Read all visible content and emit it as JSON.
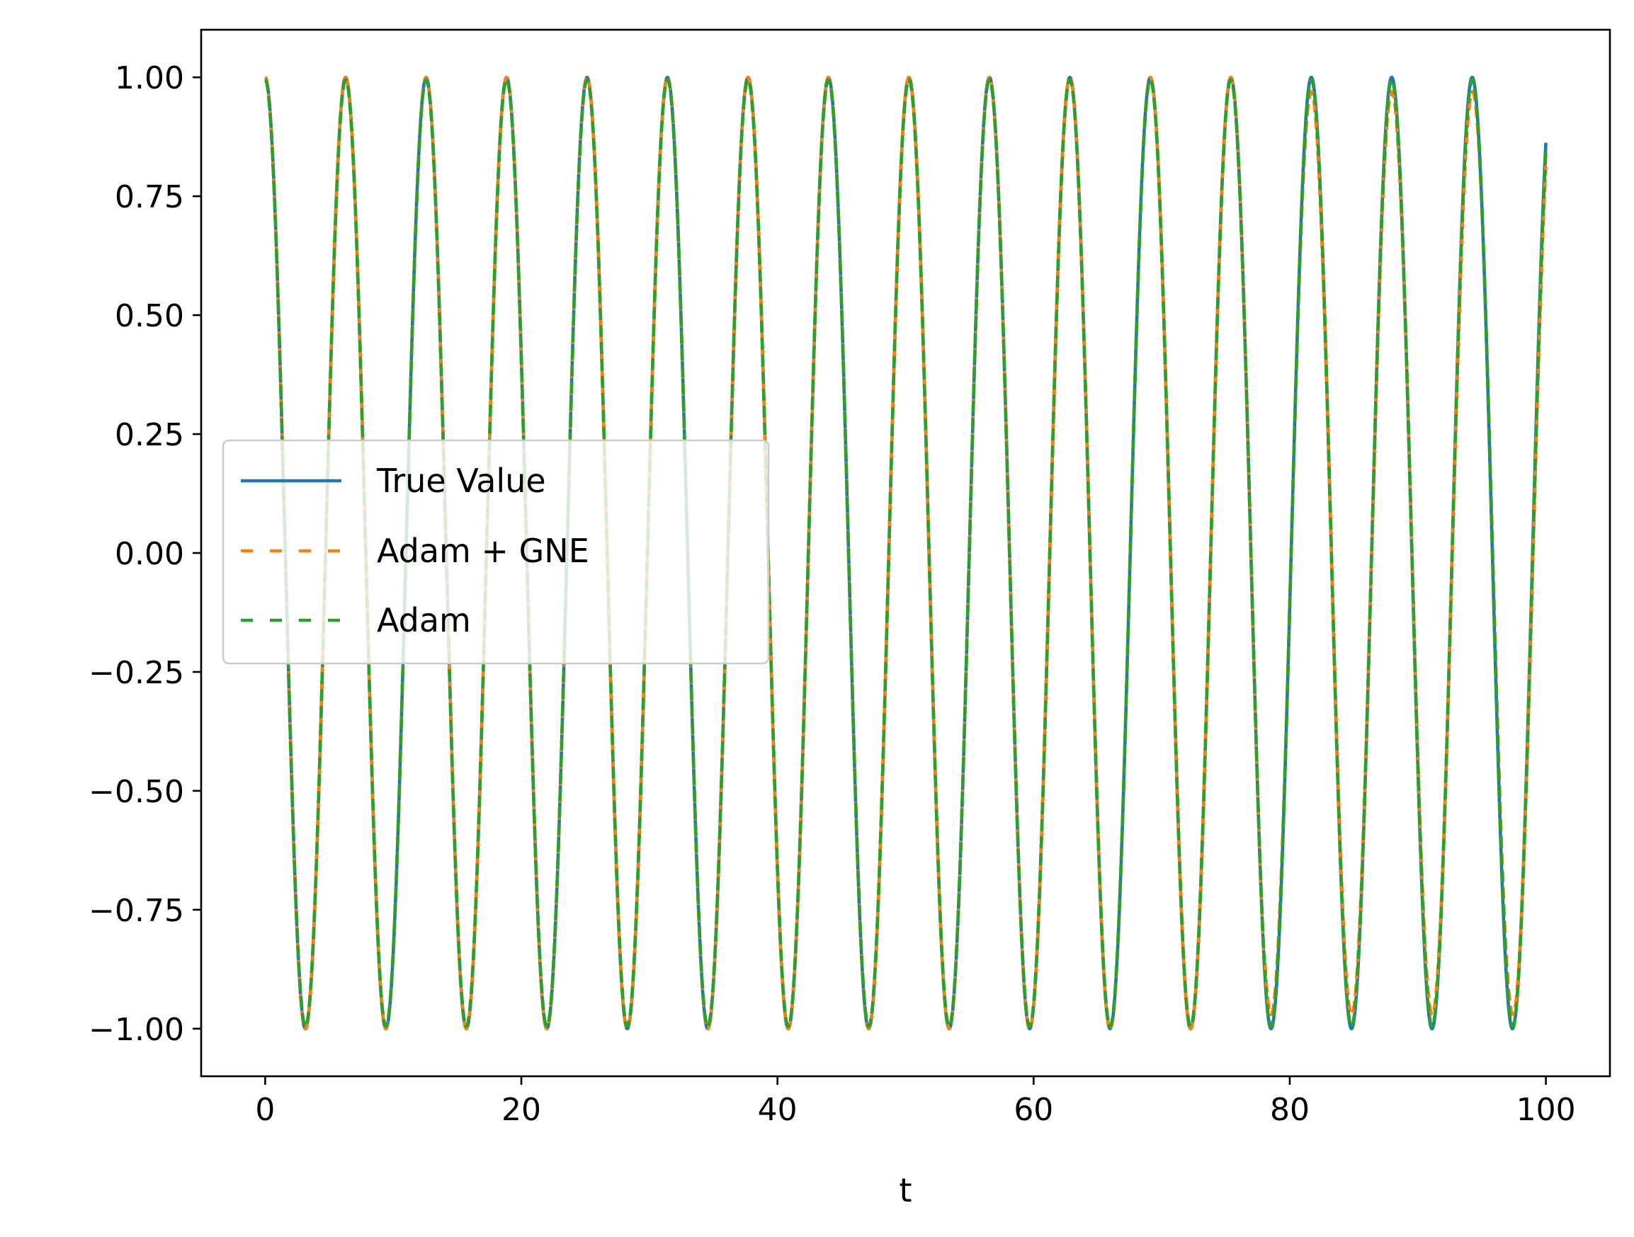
{
  "chart_data": {
    "type": "line",
    "title": "",
    "xlabel": "t",
    "ylabel": "",
    "xlim": [
      -5,
      105
    ],
    "ylim": [
      -1.1,
      1.1
    ],
    "xticks": [
      0,
      20,
      40,
      60,
      80,
      100
    ],
    "xtick_labels": [
      "0",
      "20",
      "40",
      "60",
      "80",
      "100"
    ],
    "yticks": [
      1.0,
      0.75,
      0.5,
      0.25,
      0.0,
      -0.25,
      -0.5,
      -0.75,
      -1.0
    ],
    "ytick_labels": [
      "1.00",
      "0.75",
      "0.50",
      "0.25",
      "0.00",
      "−0.25",
      "−0.50",
      "−0.75",
      "−1.00"
    ],
    "grid": false,
    "legend": {
      "placement": "center-left",
      "entries": [
        "True Value",
        "Adam + GNE",
        "Adam"
      ]
    },
    "x_range": [
      0,
      100
    ],
    "series": [
      {
        "name": "True Value",
        "function": "cos(t)",
        "style": "solid",
        "color": "#1f77b4",
        "samples": [
          [
            0,
            1.0
          ],
          [
            3.14,
            -1.0
          ],
          [
            6.28,
            1.0
          ],
          [
            12.57,
            1.0
          ],
          [
            25.13,
            1.0
          ],
          [
            50.27,
            1.0
          ],
          [
            75.4,
            1.0
          ],
          [
            94.25,
            1.0
          ],
          [
            100,
            0.862
          ]
        ]
      },
      {
        "name": "Adam + GNE",
        "function": "approximately cos(t); small phase lag after t ≈ 80",
        "style": "dashed",
        "color": "#ff7f0e",
        "samples": [
          [
            0,
            1.0
          ],
          [
            3.14,
            -1.0
          ],
          [
            6.28,
            1.0
          ],
          [
            50.27,
            1.0
          ],
          [
            81.8,
            0.97
          ],
          [
            85.0,
            -0.97
          ],
          [
            88.2,
            0.98
          ],
          [
            91.4,
            -0.98
          ],
          [
            94.6,
            0.97
          ],
          [
            97.5,
            -0.97
          ],
          [
            100,
            0.84
          ]
        ]
      },
      {
        "name": "Adam",
        "function": "approximately cos(t); minor deviation near peaks",
        "style": "dashed",
        "color": "#2ca02c",
        "samples": [
          [
            0,
            1.0
          ],
          [
            3.14,
            -1.0
          ],
          [
            6.28,
            1.0
          ],
          [
            50.27,
            0.99
          ],
          [
            75.4,
            0.99
          ],
          [
            88.0,
            0.99
          ],
          [
            94.25,
            0.98
          ],
          [
            97.4,
            -1.0
          ],
          [
            100,
            0.85
          ]
        ]
      }
    ]
  }
}
